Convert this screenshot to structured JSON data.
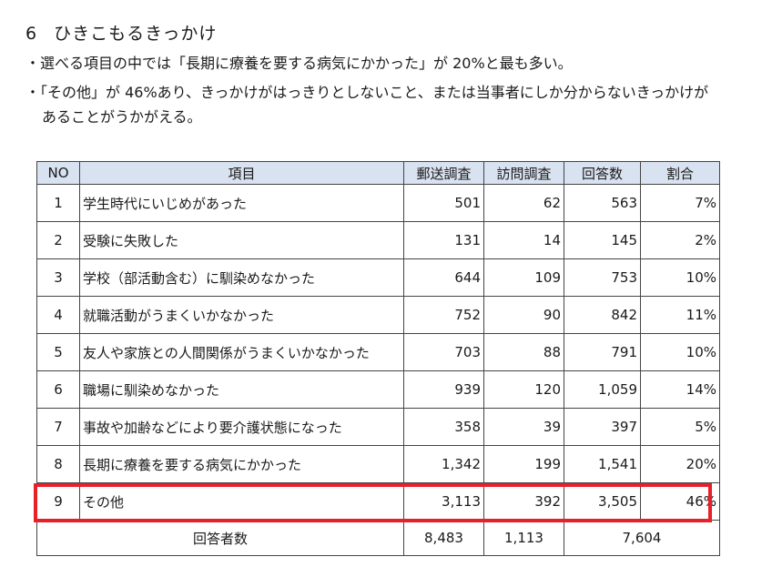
{
  "section": {
    "number": "6",
    "title": "ひきこもるきっかけ"
  },
  "bullets": {
    "first": "・選べる項目の中では「長期に療養を要する病気にかかった」が 20%と最も多い。",
    "second_line1": "・「その他」が 46%あり、きっかけがはっきりとしないこと、または当事者にしか分からないきっかけが",
    "second_line2": "あることがうかがえる。"
  },
  "table": {
    "headers": [
      "NO",
      "項目",
      "郵送調査",
      "訪問調査",
      "回答数",
      "割合"
    ],
    "rows": [
      [
        "1",
        "学生時代にいじめがあった",
        "501",
        "62",
        "563",
        "7%"
      ],
      [
        "2",
        "受験に失敗した",
        "131",
        "14",
        "145",
        "2%"
      ],
      [
        "3",
        "学校（部活動含む）に馴染めなかった",
        "644",
        "109",
        "753",
        "10%"
      ],
      [
        "4",
        "就職活動がうまくいかなかった",
        "752",
        "90",
        "842",
        "11%"
      ],
      [
        "5",
        "友人や家族との人間関係がうまくいかなかった",
        "703",
        "88",
        "791",
        "10%"
      ],
      [
        "6",
        "職場に馴染めなかった",
        "939",
        "120",
        "1,059",
        "14%"
      ],
      [
        "7",
        "事故や加齢などにより要介護状態になった",
        "358",
        "39",
        "397",
        "5%"
      ],
      [
        "8",
        "長期に療養を要する病気にかかった",
        "1,342",
        "199",
        "1,541",
        "20%"
      ],
      [
        "9",
        "その他",
        "3,113",
        "392",
        "3,505",
        "46%"
      ]
    ],
    "total": {
      "label": "回答者数",
      "mail": "8,483",
      "visit": "1,113",
      "answers": "7,604"
    }
  },
  "colors": {
    "header_bg": "#d9e2f0",
    "highlight": "#e8202a"
  }
}
